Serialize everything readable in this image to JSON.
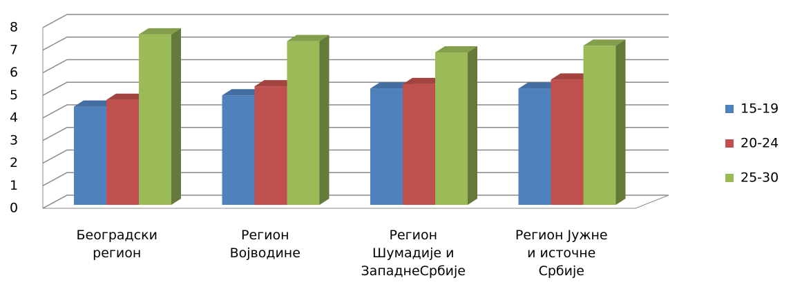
{
  "chart_data": {
    "type": "bar3d",
    "categories": [
      "Београдски\nрегион",
      "Регион\nВојводине",
      "Регион\nШумадије и\nЗападнеСрбије",
      "Регион Јужне\nи источне\nСрбије"
    ],
    "series": [
      {
        "name": "15-19",
        "color": "#4f81bd",
        "values": [
          4.5,
          5.0,
          5.3,
          5.3
        ]
      },
      {
        "name": "20-24",
        "color": "#c0504d",
        "values": [
          4.8,
          5.4,
          5.5,
          5.7
        ]
      },
      {
        "name": "25-30",
        "color": "#9bbb59",
        "values": [
          7.7,
          7.4,
          6.9,
          7.2
        ]
      }
    ],
    "ylim": [
      0,
      8
    ],
    "yticks": [
      0,
      1,
      2,
      3,
      4,
      5,
      6,
      7,
      8
    ],
    "grid": true,
    "legend": "right"
  }
}
